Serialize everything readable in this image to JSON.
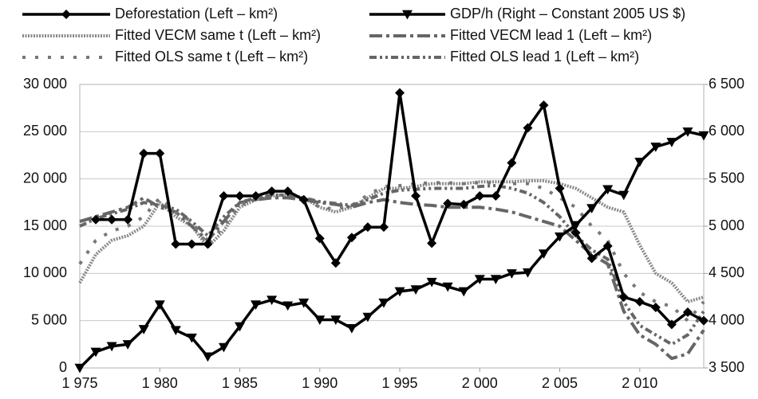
{
  "chart_data": {
    "type": "line",
    "x": [
      1975,
      1976,
      1977,
      1978,
      1979,
      1980,
      1981,
      1982,
      1983,
      1984,
      1985,
      1986,
      1987,
      1988,
      1989,
      1990,
      1991,
      1992,
      1993,
      1994,
      1995,
      1996,
      1997,
      1998,
      1999,
      2000,
      2001,
      2002,
      2003,
      2004,
      2005,
      2006,
      2007,
      2008,
      2009,
      2010,
      2011,
      2012,
      2013,
      2014
    ],
    "xlim": [
      1975,
      2014
    ],
    "xticks": [
      {
        "value": 1975,
        "label": "1 975"
      },
      {
        "value": 1980,
        "label": "1 980"
      },
      {
        "value": 1985,
        "label": "1 985"
      },
      {
        "value": 1990,
        "label": "1 990"
      },
      {
        "value": 1995,
        "label": "1 995"
      },
      {
        "value": 2000,
        "label": "2 000"
      },
      {
        "value": 2005,
        "label": "2 005"
      },
      {
        "value": 2010,
        "label": "2 010"
      }
    ],
    "ylim": [
      0,
      30000
    ],
    "yticks": [
      0,
      {
        "value": 5000,
        "label": "5 000"
      },
      {
        "value": 10000,
        "label": "10 000"
      },
      {
        "value": 15000,
        "label": "15 000"
      },
      {
        "value": 20000,
        "label": "20 000"
      },
      {
        "value": 25000,
        "label": "25 000"
      },
      {
        "value": 30000,
        "label": "30 000"
      }
    ],
    "y2lim": [
      3500,
      6500
    ],
    "y2ticks": [
      {
        "value": 3500,
        "label": "3 500"
      },
      {
        "value": 4000,
        "label": "4 000"
      },
      {
        "value": 4500,
        "label": "4 500"
      },
      {
        "value": 5000,
        "label": "5 000"
      },
      {
        "value": 5500,
        "label": "5 500"
      },
      {
        "value": 6000,
        "label": "6 000"
      },
      {
        "value": 6500,
        "label": "6 500"
      }
    ],
    "grid": true,
    "series": [
      {
        "name": "Deforestation (Left – km²)",
        "color": "#000000",
        "marker": "diamond",
        "dash": "solid",
        "values": [
          null,
          15700,
          15700,
          15700,
          22700,
          22700,
          13100,
          13100,
          13100,
          18200,
          18200,
          18200,
          18700,
          18700,
          17800,
          13700,
          11100,
          13800,
          14900,
          14900,
          29100,
          18200,
          13200,
          17400,
          17300,
          18200,
          18200,
          21700,
          25400,
          27800,
          19000,
          14300,
          11600,
          12900,
          7500,
          7000,
          6400,
          4600,
          5900,
          5000
        ]
      },
      {
        "name": "GDP/h (Right – Constant 2005 US $)",
        "color": "#000000",
        "marker": "triangle-down",
        "dash": "solid",
        "axis": "y2",
        "values": [
          3500,
          3670,
          3730,
          3750,
          3910,
          4170,
          3900,
          3820,
          3620,
          3720,
          3940,
          4170,
          4220,
          4160,
          4190,
          4010,
          4010,
          3920,
          4040,
          4190,
          4310,
          4330,
          4410,
          4360,
          4310,
          4440,
          4440,
          4500,
          4510,
          4710,
          4890,
          5010,
          5190,
          5390,
          5330,
          5680,
          5840,
          5890,
          6000,
          5960
        ]
      },
      {
        "name": "Fitted VECM same t (Left – km²)",
        "color": "#888888",
        "dash": "dotted",
        "values": [
          9000,
          12000,
          13500,
          14000,
          15000,
          17500,
          16000,
          15000,
          12800,
          14500,
          17000,
          17800,
          18200,
          18300,
          18000,
          17000,
          16500,
          17000,
          18000,
          19000,
          19000,
          19200,
          19500,
          19500,
          19500,
          19700,
          19700,
          19700,
          19800,
          19800,
          19500,
          19000,
          18000,
          17000,
          16500,
          13000,
          10000,
          9000,
          7000,
          7500
        ]
      },
      {
        "name": "Fitted VECM lead 1 (Left – km²)",
        "color": "#666666",
        "dash": "dash-dot",
        "values": [
          15500,
          16000,
          16500,
          17000,
          18000,
          17000,
          16500,
          15000,
          13500,
          15500,
          17500,
          17800,
          18000,
          18000,
          17800,
          17500,
          17300,
          17000,
          17500,
          17800,
          17500,
          17300,
          17200,
          17000,
          17000,
          17000,
          16800,
          16500,
          16000,
          15500,
          15000,
          13500,
          12000,
          11000,
          6000,
          3500,
          2500,
          1000,
          1500,
          4000
        ]
      },
      {
        "name": "Fitted OLS same t (Left – km²)",
        "color": "#777777",
        "dash": "dot",
        "values": [
          11000,
          13500,
          14500,
          15000,
          16000,
          18000,
          16500,
          15500,
          13000,
          15000,
          17200,
          17800,
          18300,
          18300,
          18000,
          17000,
          16800,
          17200,
          18300,
          19200,
          19300,
          19500,
          19600,
          19600,
          19500,
          19600,
          19600,
          19500,
          19500,
          19000,
          18000,
          17000,
          15000,
          13500,
          10000,
          8000,
          7000,
          6500,
          5000,
          7000
        ]
      },
      {
        "name": "Fitted OLS lead 1 (Left – km²)",
        "color": "#666666",
        "dash": "dash-dot-dot",
        "values": [
          15000,
          15800,
          16300,
          16800,
          17500,
          17200,
          16800,
          15500,
          14000,
          16000,
          17500,
          18000,
          18300,
          18300,
          18000,
          17600,
          17400,
          17200,
          17800,
          18500,
          18800,
          18900,
          19000,
          19000,
          19000,
          19200,
          19300,
          19000,
          18500,
          17500,
          16000,
          14000,
          12500,
          11500,
          7000,
          4500,
          3500,
          2500,
          3500,
          6000
        ]
      }
    ]
  }
}
